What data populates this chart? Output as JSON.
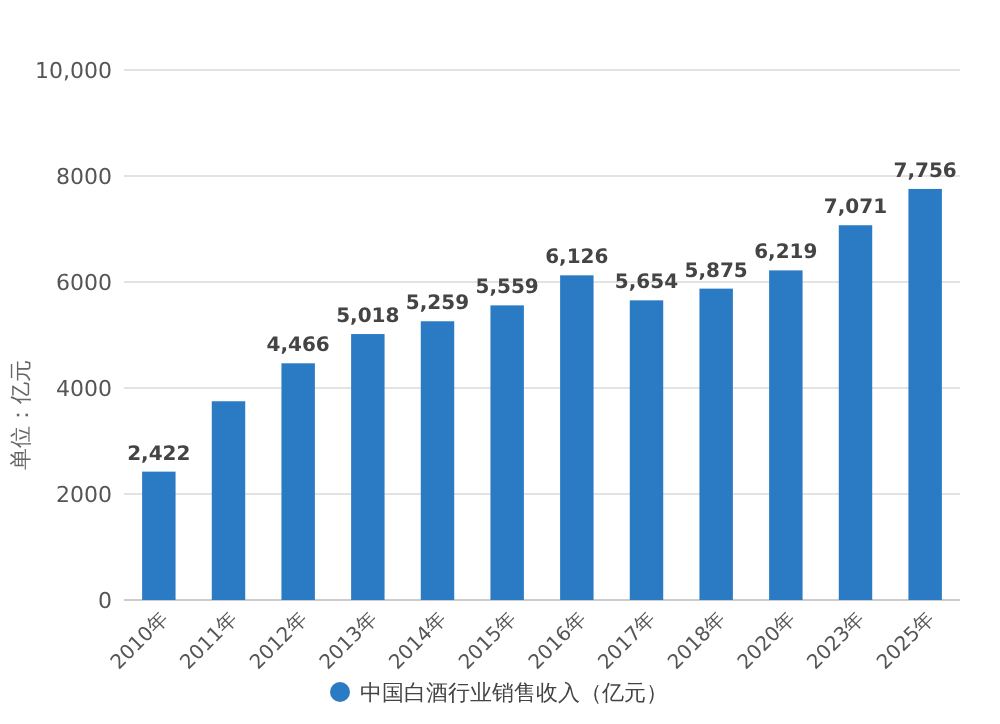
{
  "chart_data": {
    "type": "bar",
    "ylabel": "单位：亿元",
    "legend": "bottom",
    "categories": [
      "2010年",
      "2011年",
      "2012年",
      "2013年",
      "2014年",
      "2015年",
      "2016年",
      "2017年",
      "2018年",
      "2020年",
      "2023年",
      "2025年"
    ],
    "series": [
      {
        "name": "中国白酒行业销售收入（亿元）",
        "color": "#2a7bc4",
        "values": [
          2422,
          3750,
          4466,
          5018,
          5259,
          5559,
          6126,
          5654,
          5875,
          6219,
          7071,
          7756
        ]
      }
    ],
    "value_labels": [
      "2,422",
      null,
      "4,466",
      "5,018",
      "5,259",
      "5,559",
      "6,126",
      "5,654",
      "5,875",
      "6,219",
      "7,071",
      "7,756"
    ],
    "ylim": [
      0,
      10000
    ],
    "yticks": [
      0,
      2000,
      4000,
      6000,
      8000,
      {
        "value": 10000,
        "label": "10,000"
      }
    ],
    "grid": "y"
  }
}
